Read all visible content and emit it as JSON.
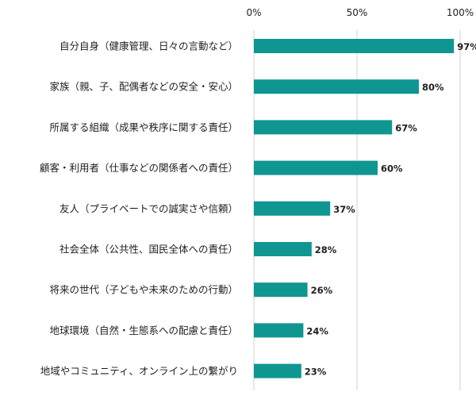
{
  "chart_data": {
    "type": "bar",
    "orientation": "horizontal",
    "title": "",
    "xlabel": "",
    "ylabel": "",
    "xlim": [
      0,
      100
    ],
    "x_ticks": [
      "0%",
      "50%",
      "100%"
    ],
    "x_axis_position": "top",
    "gridlines": "vertical",
    "legend": "none",
    "bar_color": "#0f9690",
    "value_suffix": "%",
    "categories": [
      "自分自身（健康管理、日々の言動など）",
      "家族（親、子、配偶者などの安全・安心）",
      "所属する組織（成果や秩序に関する責任）",
      "顧客・利用者（仕事などの関係者への責任）",
      "友人（プライベートでの誠実さや信頼）",
      "社会全体（公共性、国民全体への責任）",
      "将来の世代（子どもや未来のための行動）",
      "地球環境（自然・生態系への配慮と責任）",
      "地域やコミュニティ、オンライン上の繋がり"
    ],
    "values": [
      97,
      80,
      67,
      60,
      37,
      28,
      26,
      24,
      23
    ],
    "value_labels": [
      "97%",
      "80%",
      "67%",
      "60%",
      "37%",
      "28%",
      "26%",
      "24%",
      "23%"
    ]
  }
}
